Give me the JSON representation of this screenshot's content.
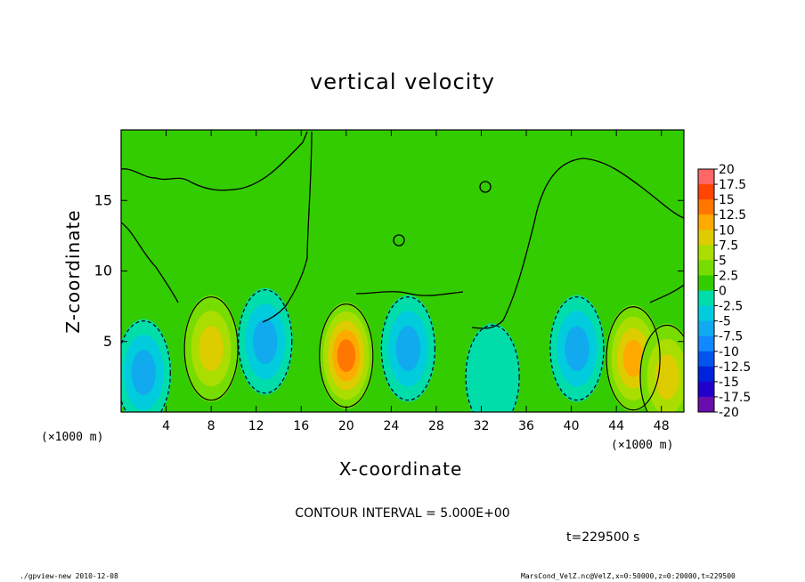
{
  "chart_data": {
    "type": "heatmap",
    "title": "vertical velocity",
    "xlabel": "X-coordinate",
    "ylabel": "Z-coordinate",
    "x_unit": "(×1000 m)",
    "y_unit": "(×1000 m)",
    "xlim": [
      0,
      50
    ],
    "ylim": [
      0,
      20
    ],
    "x_ticks": [
      4,
      8,
      12,
      16,
      20,
      24,
      28,
      32,
      36,
      40,
      44,
      48
    ],
    "y_ticks": [
      5,
      10,
      15
    ],
    "colorbar": {
      "ticks": [
        "20",
        "17.5",
        "15",
        "12.5",
        "10",
        "7.5",
        "5",
        "2.5",
        "0",
        "-2.5",
        "-5",
        "-7.5",
        "-10",
        "-12.5",
        "-15",
        "-17.5",
        "-20"
      ],
      "values": [
        20,
        17.5,
        15,
        12.5,
        10,
        7.5,
        5,
        2.5,
        0,
        -2.5,
        -5,
        -7.5,
        -10,
        -12.5,
        -15,
        -17.5,
        -20
      ]
    },
    "cells": [
      {
        "x": 2.0,
        "z": 2.8,
        "value": -8
      },
      {
        "x": 8.0,
        "z": 4.5,
        "value": 7
      },
      {
        "x": 12.8,
        "z": 5.0,
        "value": -7
      },
      {
        "x": 20.0,
        "z": 4.0,
        "value": 12
      },
      {
        "x": 25.5,
        "z": 4.5,
        "value": -7
      },
      {
        "x": 33.0,
        "z": 2.5,
        "value": -3
      },
      {
        "x": 40.5,
        "z": 4.5,
        "value": -8
      },
      {
        "x": 45.5,
        "z": 3.8,
        "value": 11
      },
      {
        "x": 48.5,
        "z": 2.5,
        "value": 7
      }
    ],
    "contour_interval": "CONTOUR INTERVAL = 5.000E+00",
    "time": "t=229500  s"
  },
  "footer": {
    "left": "./gpview-new   2010-12-08",
    "right": "MarsCond_VelZ.nc@VelZ,x=0:50000,z=0:20000,t=229500"
  },
  "colors": {
    "background_field": "#33cc00",
    "positive_peak": "#ee5500",
    "negative_peak": "#1166ee"
  }
}
